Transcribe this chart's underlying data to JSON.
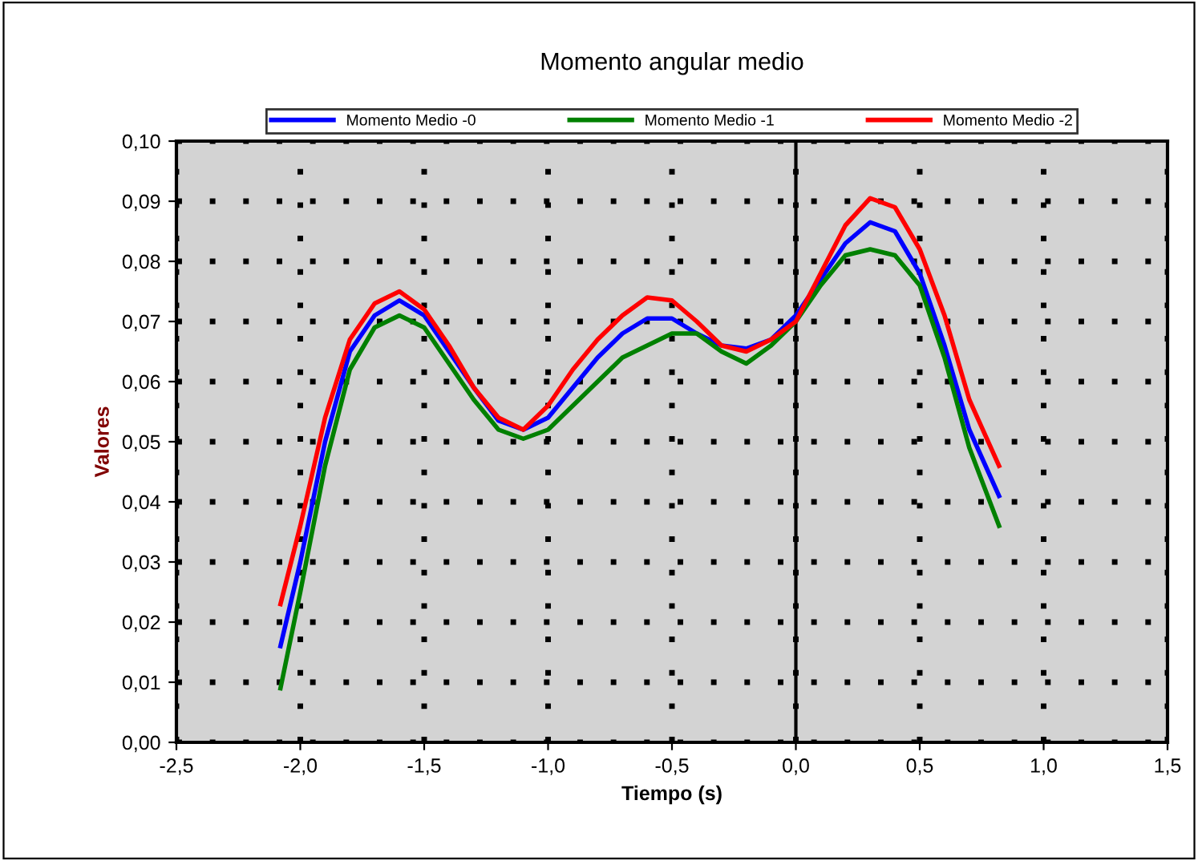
{
  "chart_data": {
    "type": "line",
    "title": "Momento angular medio",
    "xlabel": "Tiempo (s)",
    "ylabel": "Valores",
    "x": [
      -2.08,
      -2.0,
      -1.9,
      -1.8,
      -1.7,
      -1.6,
      -1.5,
      -1.4,
      -1.3,
      -1.2,
      -1.1,
      -1.0,
      -0.9,
      -0.8,
      -0.7,
      -0.6,
      -0.5,
      -0.4,
      -0.3,
      -0.2,
      -0.1,
      0.0,
      0.1,
      0.2,
      0.3,
      0.4,
      0.5,
      0.6,
      0.7,
      0.82
    ],
    "series": [
      {
        "name": "Momento Medio -0",
        "color": "#0000ff",
        "values": [
          0.016,
          0.03,
          0.05,
          0.065,
          0.071,
          0.0735,
          0.071,
          0.065,
          0.059,
          0.0535,
          0.052,
          0.054,
          0.059,
          0.064,
          0.068,
          0.0705,
          0.0705,
          0.068,
          0.066,
          0.0655,
          0.067,
          0.071,
          0.077,
          0.083,
          0.0865,
          0.085,
          0.078,
          0.066,
          0.052,
          0.041
        ]
      },
      {
        "name": "Momento Medio -1",
        "color": "#008000",
        "values": [
          0.009,
          0.025,
          0.046,
          0.062,
          0.069,
          0.071,
          0.069,
          0.063,
          0.057,
          0.052,
          0.0505,
          0.052,
          0.056,
          0.06,
          0.064,
          0.066,
          0.068,
          0.068,
          0.065,
          0.063,
          0.066,
          0.07,
          0.076,
          0.081,
          0.082,
          0.081,
          0.076,
          0.064,
          0.049,
          0.036
        ]
      },
      {
        "name": "Momento Medio -2",
        "color": "#ff0000",
        "values": [
          0.023,
          0.036,
          0.054,
          0.067,
          0.073,
          0.075,
          0.072,
          0.066,
          0.059,
          0.054,
          0.052,
          0.056,
          0.062,
          0.067,
          0.071,
          0.074,
          0.0735,
          0.07,
          0.066,
          0.065,
          0.067,
          0.07,
          0.078,
          0.086,
          0.0905,
          0.089,
          0.082,
          0.071,
          0.057,
          0.046
        ]
      }
    ],
    "xlim": [
      -2.5,
      1.5
    ],
    "xticks": [
      {
        "value": -2.5,
        "label": "-2,5"
      },
      {
        "value": -2.0,
        "label": "-2,0"
      },
      {
        "value": -1.5,
        "label": "-1,5"
      },
      {
        "value": -1.0,
        "label": "-1,0"
      },
      {
        "value": -0.5,
        "label": "-0,5"
      },
      {
        "value": 0.0,
        "label": "0,0"
      },
      {
        "value": 0.5,
        "label": "0,5"
      },
      {
        "value": 1.0,
        "label": "1,0"
      },
      {
        "value": 1.5,
        "label": "1,5"
      }
    ],
    "ylim": [
      0,
      0.1
    ],
    "yticks": [
      {
        "value": 0,
        "label": "0,00"
      },
      {
        "value": 0.01,
        "label": "0,01"
      },
      {
        "value": 0.02,
        "label": "0,02"
      },
      {
        "value": 0.03,
        "label": "0,03"
      },
      {
        "value": 0.04,
        "label": "0,04"
      },
      {
        "value": 0.05,
        "label": "0,05"
      },
      {
        "value": 0.06,
        "label": "0,06"
      },
      {
        "value": 0.07,
        "label": "0,07"
      },
      {
        "value": 0.08,
        "label": "0,08"
      },
      {
        "value": 0.09,
        "label": "0,09"
      },
      {
        "value": 0.1,
        "label": "0,10"
      }
    ],
    "ref_lines": [
      {
        "axis": "x",
        "value": 0,
        "color": "#000000",
        "line_style": "solid"
      }
    ],
    "grid": true,
    "legend": "top",
    "marker": "none",
    "line_style": "solid"
  }
}
